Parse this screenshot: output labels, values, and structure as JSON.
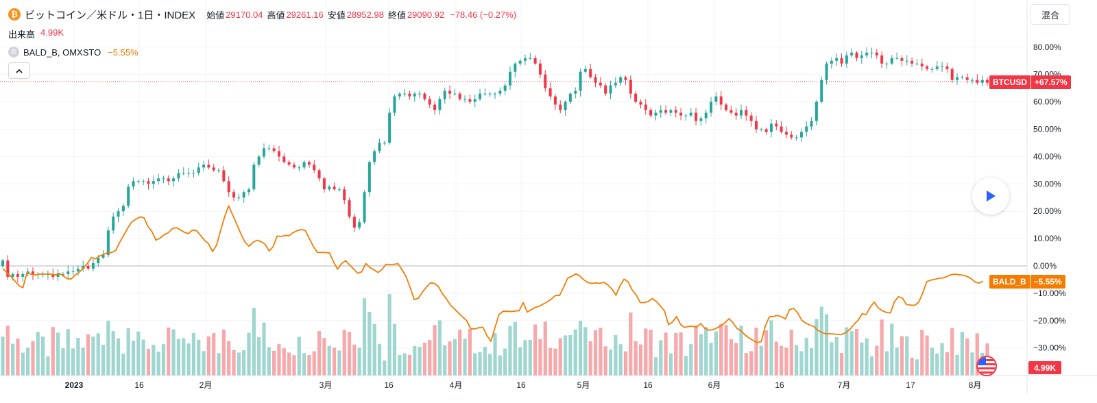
{
  "header": {
    "coin_symbol": "₿",
    "title": "ビットコイン／米ドル・1日・INDEX",
    "ohlc": [
      {
        "label": "始値",
        "value": "29170.04"
      },
      {
        "label": "高値",
        "value": "29261.16"
      },
      {
        "label": "安値",
        "value": "28952.98"
      },
      {
        "label": "終値",
        "value": "29090.92"
      }
    ],
    "change": "−78.46 (−0.27%)",
    "mode_label": "混合"
  },
  "volume_legend": {
    "label": "出来高",
    "value": "4.99K"
  },
  "compare_legend": {
    "symbol_icon": "B",
    "name": "BALD_B, OMXSTO",
    "value": "−5.55%"
  },
  "price_tag": {
    "name": "BTCUSD",
    "value": "+67.57%"
  },
  "compare_tag": {
    "name": "BALD_B",
    "value": "−5.55%"
  },
  "volume_tag": "4.99K",
  "colors": {
    "up": "#26a69a",
    "down": "#f23645",
    "compare": "#f57c00",
    "vol_up": "#9fd6cf",
    "vol_down": "#f7a8aa",
    "grid": "#f0f3fa"
  },
  "chart_data": {
    "type": "candlestick",
    "x_labels": [
      "2023",
      "16",
      "2月",
      "3月",
      "16",
      "4月",
      "16",
      "5月",
      "16",
      "6月",
      "16",
      "7月",
      "17",
      "8月"
    ],
    "y_ticks": [
      "80.00%",
      "70.00%",
      "60.00%",
      "50.00%",
      "40.00%",
      "30.00%",
      "20.00%",
      "10.00%",
      "0.00%",
      "−10.00%",
      "−20.00%",
      "−30.00%"
    ],
    "ylim": [
      -40,
      85
    ],
    "btc_close_pct": [
      2,
      -4,
      -3,
      -4,
      -3,
      -2,
      -3,
      -3,
      -3,
      -3,
      -4,
      -3,
      -3,
      -2,
      -2,
      -1,
      0,
      -1,
      1,
      3,
      4,
      13,
      18,
      20,
      22,
      29,
      31,
      31,
      31,
      30,
      31,
      32,
      32,
      31,
      32,
      34,
      34,
      34,
      34,
      36,
      37,
      36,
      35,
      35,
      31,
      27,
      25,
      25,
      27,
      28,
      37,
      40,
      43,
      43,
      42,
      40,
      38,
      37,
      36,
      36,
      38,
      37,
      35,
      32,
      28,
      29,
      28,
      28,
      24,
      18,
      14,
      16,
      27,
      38,
      42,
      45,
      45,
      56,
      62,
      63,
      63,
      62,
      63,
      63,
      61,
      59,
      57,
      61,
      64,
      63,
      63,
      61,
      61,
      60,
      61,
      63,
      63,
      63,
      63,
      64,
      66,
      71,
      74,
      75,
      76,
      76,
      74,
      70,
      65,
      62,
      59,
      57,
      60,
      63,
      64,
      71,
      72,
      69,
      67,
      66,
      63,
      66,
      67,
      69,
      68,
      63,
      60,
      59,
      57,
      55,
      56,
      57,
      56,
      57,
      56,
      55,
      55,
      56,
      53,
      54,
      56,
      60,
      62,
      59,
      57,
      56,
      55,
      57,
      55,
      53,
      50,
      50,
      49,
      52,
      51,
      49,
      48,
      47,
      47,
      49,
      51,
      53,
      60,
      68,
      74,
      75,
      76,
      74,
      77,
      78,
      76,
      77,
      78,
      78,
      77,
      74,
      74,
      76,
      76,
      75,
      75,
      74,
      74,
      73,
      72,
      72,
      73,
      73,
      72,
      68,
      69,
      69,
      68,
      68,
      67,
      68,
      67
    ],
    "compare_pct": [
      -1.0,
      -2.4,
      -3.8,
      -5.5,
      -7.2,
      -8.0,
      -2.6,
      -3.0,
      -3.3,
      -3.0,
      -3.0,
      -2.9,
      -3.0,
      -3.3,
      -2.7,
      -3.6,
      -4.7,
      -4.7,
      -3.3,
      -2.2,
      -0.8,
      1.0,
      3.1,
      2.6,
      3.6,
      4.2,
      4.9,
      4.9,
      5.7,
      8.7,
      11.2,
      13.9,
      16.1,
      17.1,
      17.9,
      17.6,
      14.4,
      12.5,
      9.4,
      10.2,
      11.4,
      12.1,
      13.6,
      14.0,
      13.2,
      12.3,
      11.8,
      13.1,
      12.9,
      11.2,
      9.4,
      8.1,
      5.3,
      7.6,
      13.0,
      18.0,
      22.0,
      18.6,
      15.3,
      11.8,
      8.8,
      7.2,
      8.6,
      9.4,
      8.9,
      8.0,
      5.5,
      7.0,
      10.9,
      10.8,
      11.1,
      11.1,
      12.2,
      12.9,
      13.3,
      12.9,
      10.0,
      7.1,
      4.9,
      4.9,
      4.9,
      4.7,
      1.4,
      -1.2,
      0.9,
      1.9,
      0.3,
      -1.2,
      -2.7,
      -2.1,
      0.9,
      -0.6,
      -1.4,
      -2.4,
      -1.3,
      0.6,
      0.5,
      0.6,
      0.8,
      -1.5,
      -4.0,
      -8.1,
      -12.3,
      -11.8,
      -9.6,
      -7.8,
      -6.2,
      -6.4,
      -7.6,
      -10.2,
      -12.1,
      -14.4,
      -15.8,
      -17.3,
      -18.7,
      -20.0,
      -23.0,
      -23.0,
      -22.6,
      -22.4,
      -25.5,
      -27.6,
      -22.6,
      -17.8,
      -16.6,
      -16.6,
      -16.7,
      -16.5,
      -16.4,
      -13.4,
      -16.9,
      -16.0,
      -15.2,
      -14.7,
      -13.9,
      -13.1,
      -12.1,
      -10.8,
      -10.8,
      -7.8,
      -4.5,
      -3.8,
      -2.9,
      -3.6,
      -5.1,
      -6.1,
      -6.4,
      -6.2,
      -6.4,
      -6.0,
      -7.0,
      -8.5,
      -10.7,
      -7.2,
      -4.8,
      -5.8,
      -8.8,
      -10.6,
      -13.4,
      -13.4,
      -13.0,
      -11.9,
      -13.0,
      -14.6,
      -16.4,
      -21.5,
      -20.5,
      -18.5,
      -21.4,
      -22.5,
      -22.1,
      -22.1,
      -22.3,
      -21.1,
      -22.8,
      -23.5,
      -23.3,
      -22.7,
      -21.9,
      -20.8,
      -19.3,
      -20.8,
      -22.9,
      -23.7,
      -25.3,
      -26.4,
      -27.3,
      -28.0,
      -27.7,
      -22.0,
      -18.6,
      -18.5,
      -18.1,
      -18.6,
      -19.4,
      -16.0,
      -15.5,
      -17.1,
      -19.8,
      -20.9,
      -21.6,
      -22.1,
      -23.5,
      -24.3,
      -24.8,
      -24.8,
      -24.9,
      -25.1,
      -25.0,
      -24.3,
      -23.2,
      -21.3,
      -19.9,
      -17.5,
      -17.8,
      -15.1,
      -13.2,
      -15.4,
      -16.4,
      -17.0,
      -17.2,
      -13.1,
      -11.2,
      -11.8,
      -14.1,
      -14.3,
      -14.4,
      -13.3,
      -10.0,
      -5.8,
      -5.2,
      -4.9,
      -4.5,
      -4.4,
      -3.9,
      -3.2,
      -3.0,
      -3.2,
      -3.4,
      -3.8,
      -4.6,
      -5.9,
      -6.3,
      -5.6
    ]
  }
}
